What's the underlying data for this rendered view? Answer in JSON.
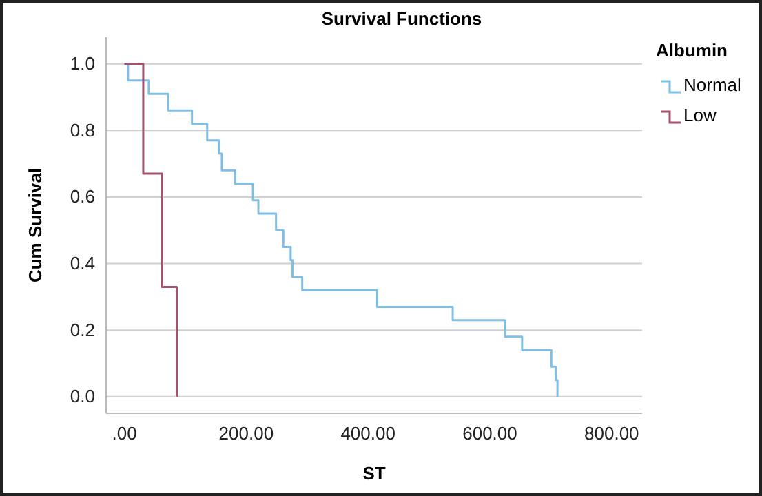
{
  "chart_data": {
    "type": "step",
    "title": "Survival Functions",
    "xlabel": "ST",
    "ylabel": "Cum Survival",
    "legend_title": "Albumin",
    "legend": "top right",
    "grid": "y",
    "xlim": [
      -30,
      850
    ],
    "xticks": [
      {
        "value": 0,
        "label": ".00"
      },
      {
        "value": 200,
        "label": "200.00"
      },
      {
        "value": 400,
        "label": "400.00"
      },
      {
        "value": 600,
        "label": "600.00"
      },
      {
        "value": 800,
        "label": "800.00"
      }
    ],
    "ylim": [
      -0.05,
      1.08
    ],
    "yticks": [
      {
        "value": 0,
        "label": "0.0"
      },
      {
        "value": 0.2,
        "label": "0.2"
      },
      {
        "value": 0.4,
        "label": "0.4"
      },
      {
        "value": 0.6,
        "label": "0.6"
      },
      {
        "value": 0.8,
        "label": "0.8"
      },
      {
        "value": 1,
        "label": "1.0"
      }
    ],
    "series": [
      {
        "name": "Normal",
        "color": "#7fbfe6",
        "x": [
          0,
          6,
          40,
          72,
          111,
          136,
          155,
          160,
          182,
          211,
          220,
          249,
          261,
          273,
          276,
          292,
          415,
          539,
          625,
          653,
          701,
          708,
          711
        ],
        "values": [
          1,
          0.95,
          0.91,
          0.86,
          0.82,
          0.77,
          0.73,
          0.68,
          0.64,
          0.59,
          0.55,
          0.5,
          0.45,
          0.41,
          0.36,
          0.32,
          0.27,
          0.23,
          0.18,
          0.14,
          0.09,
          0.05,
          0
        ]
      },
      {
        "name": "Low",
        "color": "#a0526e",
        "x": [
          0,
          31,
          62,
          86
        ],
        "values": [
          1,
          0.67,
          0.33,
          0
        ]
      }
    ]
  }
}
